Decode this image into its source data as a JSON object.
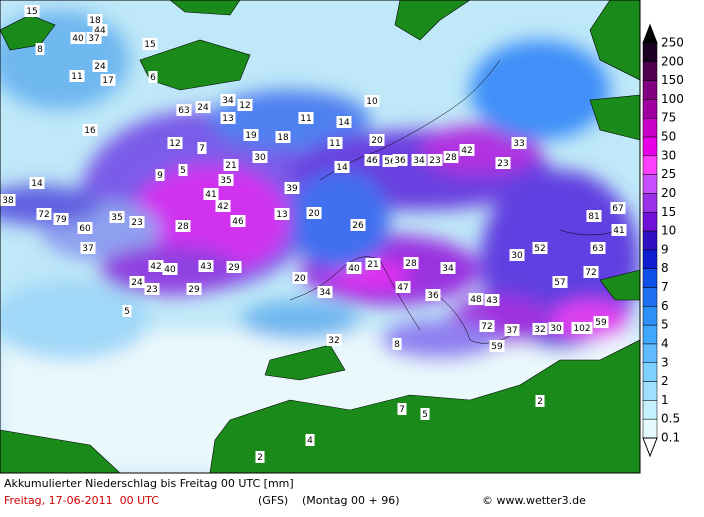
{
  "footer": {
    "title": "Akkumulierter Niederschlag bis Freitag 00 UTC [mm]",
    "date": "Freitag, 17-06-2011  00 UTC",
    "model": "(GFS)",
    "run": "(Montag 00 + 96)",
    "credit": "© www.wetter3.de"
  },
  "legend": {
    "levels": [
      "250",
      "200",
      "150",
      "100",
      "75",
      "50",
      "30",
      "25",
      "20",
      "15",
      "10",
      "9",
      "8",
      "7",
      "6",
      "5",
      "4",
      "3",
      "2",
      "1",
      "0.5",
      "0.1"
    ]
  },
  "map": {
    "labels": [
      15,
      18,
      40,
      44,
      37,
      8,
      15,
      24,
      11,
      17,
      6,
      63,
      24,
      34,
      12,
      13,
      16,
      12,
      7,
      19,
      18,
      11,
      14,
      21,
      30,
      9,
      5,
      14,
      38,
      72,
      79,
      60,
      35,
      23,
      28,
      41,
      42,
      46,
      35,
      37,
      42,
      40,
      43,
      29,
      24,
      23,
      29,
      5,
      13,
      20,
      39,
      14,
      11,
      20,
      10,
      46,
      56,
      36,
      34,
      23,
      28,
      42,
      33,
      23,
      26,
      21,
      40,
      34,
      47,
      28,
      34,
      36,
      48,
      43,
      72,
      37,
      32,
      30,
      102,
      59,
      52,
      30,
      72,
      57,
      81,
      67,
      63,
      41,
      32,
      8,
      59,
      2,
      7,
      5,
      4,
      2,
      20
    ]
  }
}
